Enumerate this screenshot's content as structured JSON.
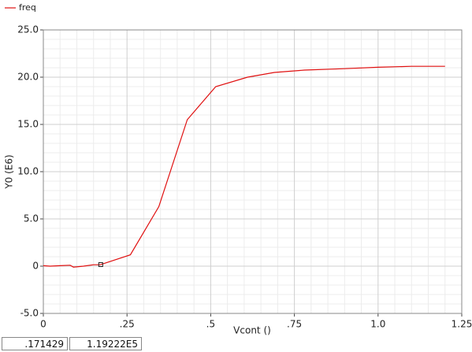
{
  "chart_data": {
    "type": "line",
    "xlabel": "Vcont ()",
    "ylabel": "Y0 (E6)",
    "x": [
      0,
      0.02,
      0.05,
      0.08,
      0.09,
      0.12,
      0.15,
      0.17,
      0.26,
      0.345,
      0.43,
      0.515,
      0.61,
      0.69,
      0.78,
      0.9,
      1.0,
      1.1,
      1.2
    ],
    "series": [
      {
        "name": "freq",
        "color": "#e01010",
        "values": [
          0.05,
          0,
          0.05,
          0.1,
          -0.1,
          0,
          0.15,
          0.15,
          1.2,
          6.3,
          15.5,
          19.0,
          20.0,
          20.5,
          20.75,
          20.9,
          21.05,
          21.15,
          21.15
        ]
      }
    ],
    "xlim": [
      0,
      1.25
    ],
    "xticks": [
      0,
      {
        "value": 0.25,
        "label": ".25"
      },
      {
        "value": 0.5,
        "label": ".5"
      },
      {
        "value": 0.75,
        "label": ".75"
      },
      {
        "value": 1.0,
        "label": "1.0"
      },
      {
        "value": 1.25,
        "label": "1.25"
      }
    ],
    "ylim": [
      -5,
      25
    ],
    "yticks": [
      {
        "value": -5,
        "label": "-5.0"
      },
      0,
      {
        "value": 5,
        "label": "5.0"
      },
      {
        "value": 10,
        "label": "10.0"
      },
      {
        "value": 15,
        "label": "15.0"
      },
      {
        "value": 20,
        "label": "20.0"
      },
      {
        "value": 25,
        "label": "25.0"
      }
    ],
    "grid": true,
    "cursor": {
      "x": 0.171429,
      "x_label": ".171429",
      "y_label": "1.19222E5"
    }
  }
}
